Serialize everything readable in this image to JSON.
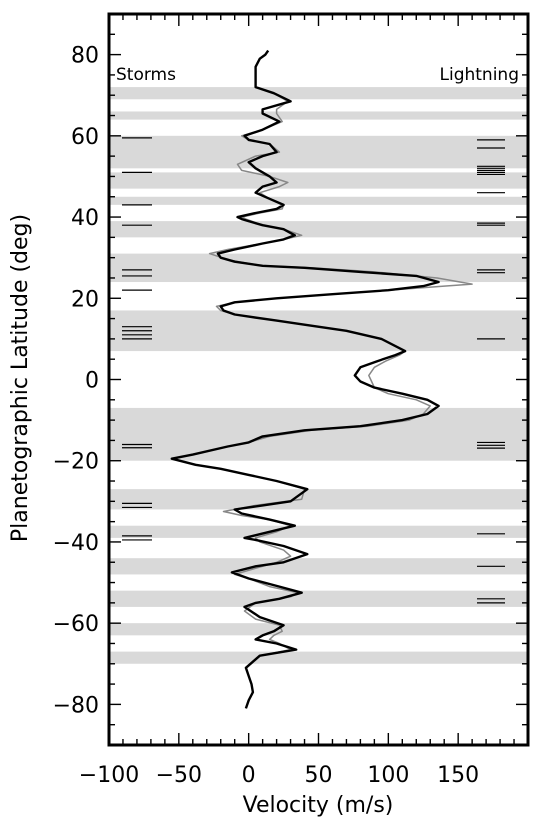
{
  "chart_data": {
    "type": "line",
    "xlabel": "Velocity (m/s)",
    "ylabel": "Planetographic Latitude (deg)",
    "xlim": [
      -100,
      200
    ],
    "ylim": [
      -90,
      90
    ],
    "x_ticks": [
      -100,
      -50,
      0,
      50,
      100,
      150
    ],
    "y_ticks": [
      80,
      60,
      40,
      20,
      0,
      -20,
      -40,
      -60,
      -80
    ],
    "x_tick_labels": [
      "−100",
      "−50",
      "0",
      "50",
      "100",
      "150"
    ],
    "y_tick_labels": [
      "80",
      "60",
      "40",
      "20",
      "0",
      "−20",
      "−40",
      "−60",
      "−80"
    ],
    "left_label": "Storms",
    "right_label": "Lightning",
    "shaded_bands": [
      [
        69,
        72
      ],
      [
        64,
        66
      ],
      [
        52,
        60
      ],
      [
        47,
        51
      ],
      [
        43,
        45
      ],
      [
        35,
        39
      ],
      [
        24,
        31
      ],
      [
        7,
        17
      ],
      [
        -20,
        -7
      ],
      [
        -32,
        -27
      ],
      [
        -39,
        -36
      ],
      [
        -48,
        -44
      ],
      [
        -56,
        -52
      ],
      [
        -63,
        -60
      ],
      [
        -70,
        -67
      ]
    ],
    "storms": [
      59.5,
      51,
      43,
      38,
      27,
      25.5,
      22,
      13,
      12,
      11,
      10,
      -16,
      -16.8,
      -30.5,
      -31.5,
      -38.5,
      -39.5
    ],
    "lightning": [
      59,
      57,
      52.5,
      52,
      51.5,
      51,
      50.5,
      46,
      38.5,
      38,
      27,
      26.3,
      10,
      -15.5,
      -16.2,
      -16.9,
      -38,
      -46,
      -54,
      -55
    ],
    "series": [
      {
        "color": "#000000",
        "points": [
          [
            -2,
            -81
          ],
          [
            0,
            -79
          ],
          [
            3,
            -77
          ],
          [
            2,
            -75
          ],
          [
            0,
            -73
          ],
          [
            -2,
            -71
          ],
          [
            8,
            -68
          ],
          [
            34,
            -66.5
          ],
          [
            20,
            -65
          ],
          [
            5,
            -64
          ],
          [
            10,
            -63
          ],
          [
            18,
            -62
          ],
          [
            25,
            -60.5
          ],
          [
            8,
            -58.5
          ],
          [
            -3,
            -56
          ],
          [
            5,
            -55
          ],
          [
            22,
            -54
          ],
          [
            38,
            -52.5
          ],
          [
            22,
            -51
          ],
          [
            0,
            -49
          ],
          [
            -12,
            -47.5
          ],
          [
            5,
            -46
          ],
          [
            25,
            -45
          ],
          [
            42,
            -43
          ],
          [
            25,
            -41
          ],
          [
            5,
            -39.5
          ],
          [
            -3,
            -39
          ],
          [
            15,
            -37.5
          ],
          [
            33,
            -36
          ],
          [
            15,
            -34.5
          ],
          [
            -5,
            -33
          ],
          [
            -10,
            -32
          ],
          [
            10,
            -31
          ],
          [
            30,
            -30
          ],
          [
            42,
            -27
          ],
          [
            20,
            -25
          ],
          [
            0,
            -23.5
          ],
          [
            -20,
            -22
          ],
          [
            -38,
            -21
          ],
          [
            -55,
            -19.5
          ],
          [
            -40,
            -18.5
          ],
          [
            -15,
            -16.5
          ],
          [
            0,
            -15.5
          ],
          [
            10,
            -14
          ],
          [
            40,
            -12.5
          ],
          [
            80,
            -11.5
          ],
          [
            110,
            -10
          ],
          [
            128,
            -8.5
          ],
          [
            136,
            -6.5
          ],
          [
            128,
            -5
          ],
          [
            110,
            -3.5
          ],
          [
            90,
            -2
          ],
          [
            80,
            -0.5
          ],
          [
            76,
            1
          ],
          [
            80,
            3
          ],
          [
            92,
            4.5
          ],
          [
            105,
            6
          ],
          [
            112,
            7
          ],
          [
            95,
            10
          ],
          [
            70,
            12
          ],
          [
            40,
            13.5
          ],
          [
            20,
            14.5
          ],
          [
            0,
            15.5
          ],
          [
            -10,
            16
          ],
          [
            -18,
            17
          ],
          [
            -20,
            18
          ],
          [
            -10,
            19
          ],
          [
            20,
            20
          ],
          [
            60,
            21
          ],
          [
            100,
            22
          ],
          [
            125,
            23
          ],
          [
            136,
            24
          ],
          [
            120,
            25.5
          ],
          [
            80,
            26.5
          ],
          [
            40,
            27.5
          ],
          [
            10,
            28
          ],
          [
            -10,
            29
          ],
          [
            -20,
            30
          ],
          [
            -22,
            31
          ],
          [
            -10,
            32
          ],
          [
            10,
            33.5
          ],
          [
            25,
            34.5
          ],
          [
            33,
            35.5
          ],
          [
            25,
            37
          ],
          [
            10,
            38
          ],
          [
            -5,
            39.5
          ],
          [
            -8,
            40
          ],
          [
            5,
            41
          ],
          [
            20,
            42
          ],
          [
            25,
            43
          ],
          [
            15,
            44.5
          ],
          [
            5,
            46
          ],
          [
            10,
            47.5
          ],
          [
            20,
            48.5
          ],
          [
            15,
            50
          ],
          [
            5,
            52
          ],
          [
            0,
            53.5
          ],
          [
            10,
            55
          ],
          [
            20,
            56
          ],
          [
            15,
            58
          ],
          [
            0,
            59
          ],
          [
            -3,
            60
          ],
          [
            10,
            61.5
          ],
          [
            22,
            63.5
          ],
          [
            10,
            65.5
          ],
          [
            10,
            66.5
          ],
          [
            30,
            68.5
          ],
          [
            18,
            70.5
          ],
          [
            5,
            72
          ],
          [
            5,
            75
          ],
          [
            5,
            77
          ],
          [
            8,
            79
          ],
          [
            12,
            80
          ],
          [
            14,
            81
          ]
        ]
      },
      {
        "color": "#888888",
        "points": [
          [
            -2,
            -81
          ],
          [
            0,
            -79
          ],
          [
            3,
            -77
          ],
          [
            2,
            -75
          ],
          [
            0,
            -73
          ],
          [
            -2,
            -71
          ],
          [
            8,
            -68
          ],
          [
            30,
            -66.5
          ],
          [
            22,
            -65
          ],
          [
            15,
            -64
          ],
          [
            18,
            -63
          ],
          [
            24,
            -62
          ],
          [
            22,
            -60.5
          ],
          [
            5,
            -59
          ],
          [
            -3,
            -57
          ],
          [
            5,
            -55
          ],
          [
            30,
            -53.5
          ],
          [
            35,
            -52.5
          ],
          [
            15,
            -51
          ],
          [
            0,
            -49
          ],
          [
            -10,
            -48
          ],
          [
            5,
            -46.5
          ],
          [
            20,
            -45
          ],
          [
            30,
            -43.5
          ],
          [
            25,
            -42
          ],
          [
            8,
            -40
          ],
          [
            5,
            -39
          ],
          [
            20,
            -37.5
          ],
          [
            30,
            -36
          ],
          [
            15,
            -34.5
          ],
          [
            -5,
            -33.5
          ],
          [
            -18,
            -32.5
          ],
          [
            5,
            -31
          ],
          [
            38,
            -29.5
          ],
          [
            40,
            -27
          ],
          [
            20,
            -25
          ],
          [
            0,
            -23.5
          ],
          [
            -20,
            -22
          ],
          [
            -38,
            -21
          ],
          [
            -55,
            -19.5
          ],
          [
            -40,
            -18.5
          ],
          [
            -15,
            -16.5
          ],
          [
            0,
            -15.5
          ],
          [
            15,
            -14
          ],
          [
            45,
            -12.5
          ],
          [
            85,
            -11.5
          ],
          [
            115,
            -10
          ],
          [
            125,
            -8.5
          ],
          [
            130,
            -6.5
          ],
          [
            120,
            -5
          ],
          [
            100,
            -3.5
          ],
          [
            90,
            -2
          ],
          [
            88,
            -0.5
          ],
          [
            86,
            1
          ],
          [
            90,
            3
          ],
          [
            98,
            4.5
          ],
          [
            108,
            6
          ],
          [
            112,
            7
          ],
          [
            95,
            10
          ],
          [
            70,
            12
          ],
          [
            40,
            13.5
          ],
          [
            20,
            14.5
          ],
          [
            0,
            15.5
          ],
          [
            -10,
            16
          ],
          [
            -20,
            17
          ],
          [
            -23,
            18
          ],
          [
            -10,
            19
          ],
          [
            20,
            20
          ],
          [
            60,
            21
          ],
          [
            100,
            22
          ],
          [
            140,
            23
          ],
          [
            160,
            23.5
          ],
          [
            135,
            25
          ],
          [
            90,
            26.5
          ],
          [
            45,
            27.5
          ],
          [
            10,
            28
          ],
          [
            -15,
            29.5
          ],
          [
            -28,
            31
          ],
          [
            -15,
            32
          ],
          [
            10,
            33.5
          ],
          [
            25,
            34.5
          ],
          [
            38,
            35.5
          ],
          [
            25,
            37
          ],
          [
            10,
            38
          ],
          [
            -2,
            39.5
          ],
          [
            -5,
            40
          ],
          [
            8,
            41
          ],
          [
            24,
            42
          ],
          [
            25,
            43
          ],
          [
            15,
            44.5
          ],
          [
            8,
            46
          ],
          [
            22,
            47.5
          ],
          [
            28,
            48.5
          ],
          [
            15,
            50
          ],
          [
            -5,
            51.5
          ],
          [
            -8,
            53
          ],
          [
            5,
            55
          ],
          [
            22,
            56
          ],
          [
            15,
            58
          ],
          [
            0,
            59
          ],
          [
            -5,
            60
          ],
          [
            10,
            61.5
          ],
          [
            24,
            63.5
          ],
          [
            20,
            65.5
          ],
          [
            20,
            66.5
          ],
          [
            28,
            68.5
          ],
          [
            18,
            70.5
          ],
          [
            5,
            72
          ]
        ]
      }
    ]
  }
}
